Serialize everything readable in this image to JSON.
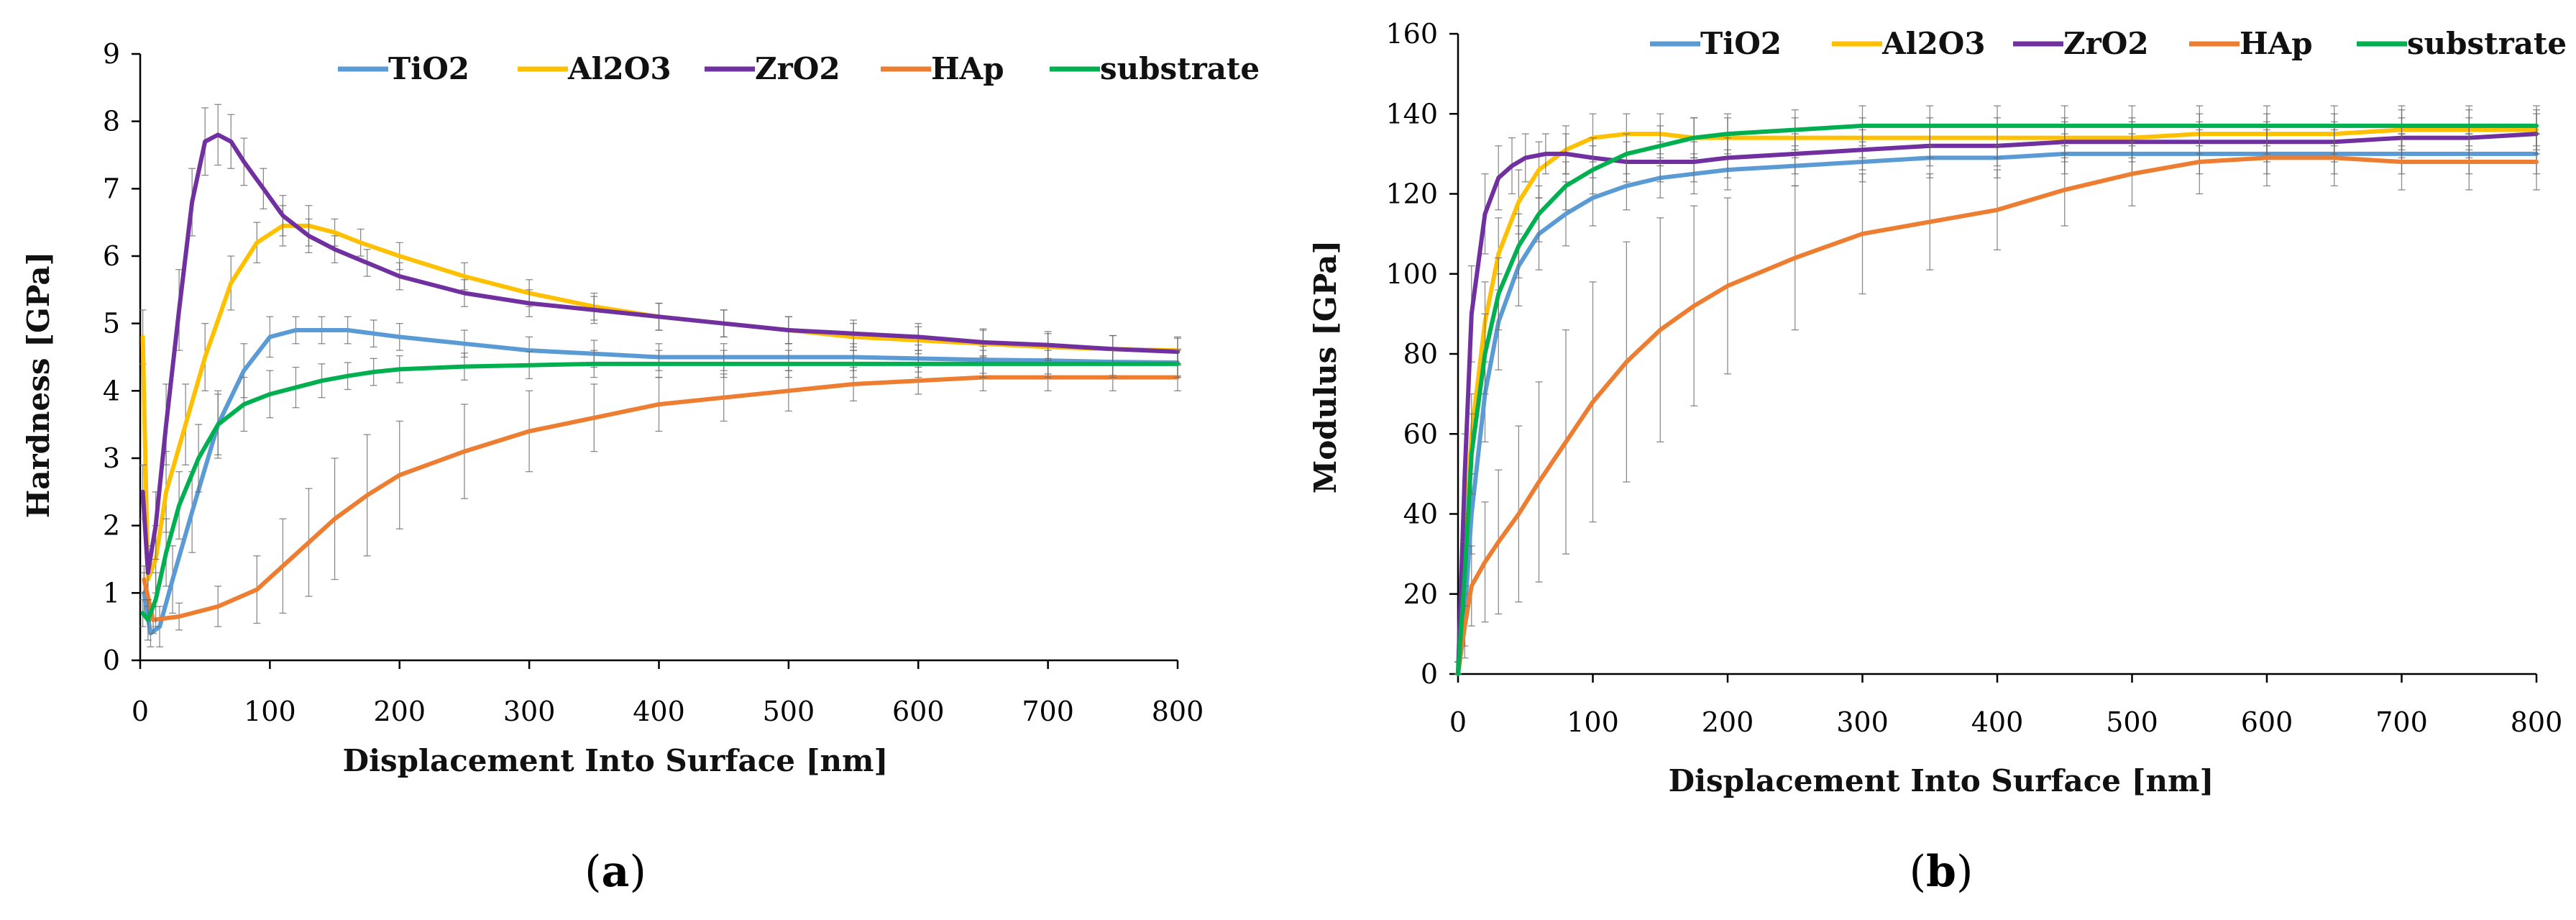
{
  "chart_data": [
    {
      "type": "line",
      "panel_label": "(a)",
      "panel_letter": "a",
      "xlabel": "Displacement Into Surface [nm]",
      "ylabel": "Hardness [GPa]",
      "xlim": [
        0,
        800
      ],
      "ylim": [
        0,
        9
      ],
      "xticks": [
        0,
        100,
        200,
        300,
        400,
        500,
        600,
        700,
        800
      ],
      "yticks": [
        0,
        1,
        2,
        3,
        4,
        5,
        6,
        7,
        8,
        9
      ],
      "grid": false,
      "legend_position": "top",
      "series": [
        {
          "name": "TiO2",
          "color": "#5b9bd5",
          "x": [
            3,
            8,
            15,
            25,
            40,
            60,
            80,
            100,
            120,
            140,
            160,
            180,
            200,
            250,
            300,
            350,
            400,
            450,
            500,
            550,
            600,
            650,
            700,
            750,
            800
          ],
          "y": [
            1.0,
            0.4,
            0.5,
            1.2,
            2.2,
            3.5,
            4.3,
            4.8,
            4.9,
            4.9,
            4.9,
            4.85,
            4.8,
            4.7,
            4.6,
            4.55,
            4.5,
            4.5,
            4.5,
            4.5,
            4.48,
            4.46,
            4.45,
            4.43,
            4.42
          ],
          "err": [
            0.3,
            0.2,
            0.3,
            0.5,
            0.6,
            0.5,
            0.4,
            0.3,
            0.2,
            0.2,
            0.2,
            0.2,
            0.2,
            0.2,
            0.2,
            0.2,
            0.2,
            0.2,
            0.2,
            0.2,
            0.2,
            0.2,
            0.2,
            0.2,
            0.2
          ]
        },
        {
          "name": "Al2O3",
          "color": "#ffc000",
          "x": [
            2,
            6,
            12,
            20,
            35,
            50,
            70,
            90,
            110,
            130,
            150,
            170,
            200,
            250,
            300,
            350,
            400,
            450,
            500,
            550,
            600,
            650,
            700,
            750,
            800
          ],
          "y": [
            4.8,
            1.2,
            1.5,
            2.5,
            3.5,
            4.5,
            5.6,
            6.2,
            6.45,
            6.45,
            6.35,
            6.2,
            6.0,
            5.7,
            5.45,
            5.25,
            5.1,
            5.0,
            4.9,
            4.8,
            4.75,
            4.7,
            4.65,
            4.62,
            4.6
          ],
          "err": [
            0.4,
            0.4,
            0.5,
            0.6,
            0.6,
            0.5,
            0.4,
            0.3,
            0.3,
            0.3,
            0.2,
            0.2,
            0.2,
            0.2,
            0.2,
            0.2,
            0.2,
            0.2,
            0.2,
            0.2,
            0.2,
            0.2,
            0.2,
            0.2,
            0.2
          ]
        },
        {
          "name": "ZrO2",
          "color": "#7030a0",
          "x": [
            2,
            6,
            12,
            20,
            30,
            40,
            50,
            60,
            70,
            80,
            95,
            110,
            130,
            150,
            175,
            200,
            250,
            300,
            350,
            400,
            450,
            500,
            550,
            600,
            650,
            700,
            750,
            800
          ],
          "y": [
            2.5,
            1.3,
            2.0,
            3.5,
            5.2,
            6.8,
            7.7,
            7.8,
            7.7,
            7.4,
            7.0,
            6.6,
            6.3,
            6.1,
            5.9,
            5.7,
            5.45,
            5.3,
            5.2,
            5.1,
            5.0,
            4.9,
            4.85,
            4.8,
            4.72,
            4.68,
            4.62,
            4.58
          ],
          "err": [
            0.4,
            0.4,
            0.5,
            0.6,
            0.6,
            0.5,
            0.5,
            0.45,
            0.4,
            0.35,
            0.3,
            0.3,
            0.25,
            0.2,
            0.2,
            0.2,
            0.2,
            0.2,
            0.2,
            0.2,
            0.2,
            0.2,
            0.2,
            0.2,
            0.2,
            0.2,
            0.2,
            0.2
          ]
        },
        {
          "name": "HAp",
          "color": "#ed7d31",
          "x": [
            3,
            10,
            30,
            60,
            90,
            110,
            130,
            150,
            175,
            200,
            250,
            300,
            350,
            400,
            450,
            500,
            550,
            600,
            650,
            700,
            750,
            800
          ],
          "y": [
            1.2,
            0.6,
            0.65,
            0.8,
            1.05,
            1.4,
            1.75,
            2.1,
            2.45,
            2.75,
            3.1,
            3.4,
            3.6,
            3.8,
            3.9,
            4.0,
            4.1,
            4.15,
            4.2,
            4.2,
            4.2,
            4.2
          ],
          "err": [
            0.2,
            0.2,
            0.2,
            0.3,
            0.5,
            0.7,
            0.8,
            0.9,
            0.9,
            0.8,
            0.7,
            0.6,
            0.5,
            0.4,
            0.35,
            0.3,
            0.25,
            0.2,
            0.2,
            0.2,
            0.2,
            0.2
          ]
        },
        {
          "name": "substrate",
          "color": "#00b050",
          "x": [
            2,
            6,
            12,
            20,
            30,
            45,
            60,
            80,
            100,
            120,
            140,
            160,
            180,
            200,
            250,
            300,
            350,
            400,
            450,
            500,
            550,
            600,
            650,
            700,
            750,
            800
          ],
          "y": [
            0.7,
            0.6,
            0.9,
            1.6,
            2.3,
            3.0,
            3.5,
            3.8,
            3.95,
            4.05,
            4.15,
            4.22,
            4.28,
            4.32,
            4.36,
            4.38,
            4.4,
            4.4,
            4.4,
            4.4,
            4.4,
            4.4,
            4.4,
            4.4,
            4.4,
            4.4
          ],
          "err": [
            0.2,
            0.3,
            0.4,
            0.5,
            0.5,
            0.5,
            0.45,
            0.4,
            0.35,
            0.3,
            0.25,
            0.2,
            0.2,
            0.2,
            0.2,
            0.2,
            0.2,
            0.2,
            0.2,
            0.2,
            0.2,
            0.2,
            0.2,
            0.2,
            0.2,
            0.2
          ]
        }
      ]
    },
    {
      "type": "line",
      "panel_label": "(b)",
      "panel_letter": "b",
      "xlabel": "Displacement Into Surface [nm]",
      "ylabel": "Modulus [GPa]",
      "xlim": [
        0,
        800
      ],
      "ylim": [
        0,
        160
      ],
      "xticks": [
        0,
        100,
        200,
        300,
        400,
        500,
        600,
        700,
        800
      ],
      "yticks": [
        0,
        20,
        40,
        60,
        80,
        100,
        120,
        140,
        160
      ],
      "grid": false,
      "legend_position": "top",
      "series": [
        {
          "name": "TiO2",
          "color": "#5b9bd5",
          "x": [
            0,
            5,
            10,
            20,
            30,
            45,
            60,
            80,
            100,
            125,
            150,
            175,
            200,
            250,
            300,
            350,
            400,
            450,
            500,
            550,
            600,
            650,
            700,
            750,
            800
          ],
          "y": [
            0,
            15,
            40,
            70,
            88,
            102,
            110,
            115,
            119,
            122,
            124,
            125,
            126,
            127,
            128,
            129,
            129,
            130,
            130,
            130,
            130,
            130,
            130,
            130,
            130
          ],
          "err": [
            3,
            8,
            10,
            12,
            12,
            10,
            9,
            8,
            7,
            6,
            5,
            5,
            5,
            5,
            5,
            5,
            5,
            5,
            5,
            5,
            5,
            5,
            5,
            5,
            5
          ]
        },
        {
          "name": "Al2O3",
          "color": "#ffc000",
          "x": [
            0,
            5,
            10,
            20,
            30,
            45,
            60,
            80,
            100,
            125,
            150,
            175,
            200,
            250,
            300,
            350,
            400,
            450,
            500,
            550,
            600,
            650,
            700,
            750,
            800
          ],
          "y": [
            0,
            30,
            60,
            88,
            105,
            118,
            126,
            131,
            134,
            135,
            135,
            134,
            134,
            134,
            134,
            134,
            134,
            134,
            134,
            135,
            135,
            135,
            136,
            136,
            136
          ],
          "err": [
            3,
            8,
            10,
            10,
            9,
            8,
            7,
            6,
            6,
            5,
            5,
            5,
            5,
            5,
            5,
            5,
            5,
            5,
            5,
            5,
            5,
            5,
            5,
            5,
            5
          ]
        },
        {
          "name": "ZrO2",
          "color": "#7030a0",
          "x": [
            0,
            5,
            10,
            20,
            30,
            40,
            50,
            65,
            80,
            100,
            125,
            150,
            175,
            200,
            250,
            300,
            350,
            400,
            450,
            500,
            550,
            600,
            650,
            700,
            750,
            800
          ],
          "y": [
            0,
            50,
            90,
            115,
            124,
            127,
            129,
            130,
            130,
            129,
            128,
            128,
            128,
            129,
            130,
            131,
            132,
            132,
            133,
            133,
            133,
            133,
            133,
            134,
            134,
            135
          ],
          "err": [
            3,
            10,
            12,
            10,
            8,
            7,
            6,
            5,
            5,
            5,
            5,
            5,
            5,
            5,
            5,
            5,
            5,
            5,
            5,
            5,
            5,
            5,
            5,
            5,
            5,
            5
          ]
        },
        {
          "name": "HAp",
          "color": "#ed7d31",
          "x": [
            0,
            5,
            10,
            20,
            30,
            45,
            60,
            80,
            100,
            125,
            150,
            175,
            200,
            250,
            300,
            350,
            400,
            450,
            500,
            550,
            600,
            650,
            700,
            750,
            800
          ],
          "y": [
            0,
            12,
            22,
            28,
            33,
            40,
            48,
            58,
            68,
            78,
            86,
            92,
            97,
            104,
            110,
            113,
            116,
            121,
            125,
            128,
            129,
            129,
            128,
            128,
            128
          ],
          "err": [
            3,
            8,
            10,
            15,
            18,
            22,
            25,
            28,
            30,
            30,
            28,
            25,
            22,
            18,
            15,
            12,
            10,
            9,
            8,
            8,
            7,
            7,
            7,
            7,
            7
          ]
        },
        {
          "name": "substrate",
          "color": "#00b050",
          "x": [
            0,
            5,
            10,
            20,
            30,
            45,
            60,
            80,
            100,
            125,
            150,
            175,
            200,
            250,
            300,
            350,
            400,
            450,
            500,
            550,
            600,
            650,
            700,
            750,
            800
          ],
          "y": [
            0,
            25,
            55,
            80,
            95,
            107,
            115,
            122,
            126,
            130,
            132,
            134,
            135,
            136,
            137,
            137,
            137,
            137,
            137,
            137,
            137,
            137,
            137,
            137,
            137
          ],
          "err": [
            3,
            8,
            10,
            10,
            9,
            8,
            7,
            6,
            6,
            5,
            5,
            5,
            5,
            5,
            5,
            5,
            5,
            5,
            5,
            5,
            5,
            5,
            5,
            5,
            5
          ]
        }
      ]
    }
  ]
}
